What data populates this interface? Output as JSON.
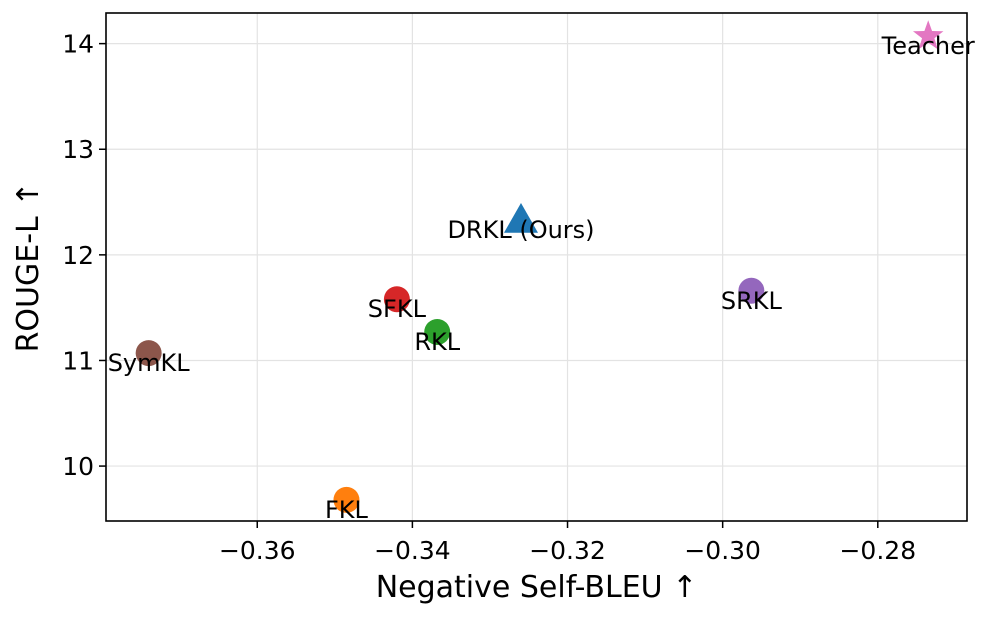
{
  "chart_data": {
    "type": "scatter",
    "title": "",
    "xlabel": "Negative Self-BLEU ↑",
    "ylabel": "ROUGE-L ↑",
    "xlim": [
      -0.3795,
      -0.2685
    ],
    "ylim": [
      9.48,
      14.29
    ],
    "xticks": [
      -0.36,
      -0.34,
      -0.32,
      -0.3,
      -0.28
    ],
    "xtick_labels": [
      "−0.36",
      "−0.34",
      "−0.32",
      "−0.30",
      "−0.28"
    ],
    "yticks": [
      10,
      11,
      12,
      13,
      14
    ],
    "ytick_labels": [
      "10",
      "11",
      "12",
      "13",
      "14"
    ],
    "grid": true,
    "points": [
      {
        "label": "SymKL",
        "x": -0.374,
        "y": 11.07,
        "color": "#8c564b",
        "marker": "circle"
      },
      {
        "label": "FKL",
        "x": -0.3485,
        "y": 9.68,
        "color": "#ff7f0e",
        "marker": "circle"
      },
      {
        "label": "SFKL",
        "x": -0.342,
        "y": 11.58,
        "color": "#d62728",
        "marker": "circle"
      },
      {
        "label": "RKL",
        "x": -0.3368,
        "y": 11.27,
        "color": "#2ca02c",
        "marker": "circle"
      },
      {
        "label": "DRKL (Ours)",
        "x": -0.326,
        "y": 12.33,
        "color": "#1f77b4",
        "marker": "triangle"
      },
      {
        "label": "SRKL",
        "x": -0.2963,
        "y": 11.66,
        "color": "#9467bd",
        "marker": "circle"
      },
      {
        "label": "Teacher",
        "x": -0.2735,
        "y": 14.07,
        "color": "#e377c2",
        "marker": "star"
      }
    ]
  }
}
